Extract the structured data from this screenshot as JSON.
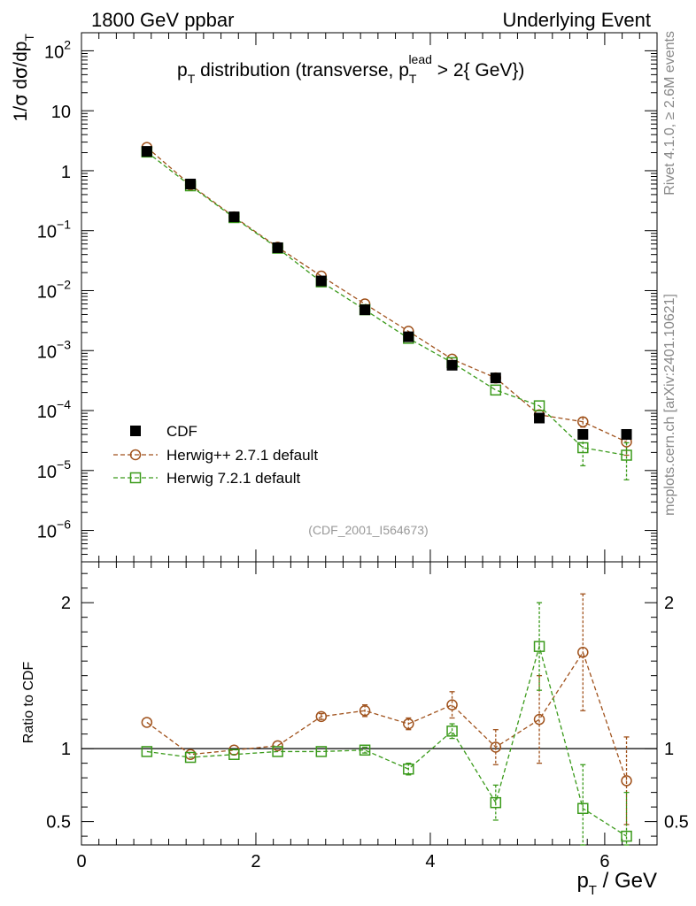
{
  "header": {
    "left": "1800 GeV ppbar",
    "right": "Underlying Event"
  },
  "side_text": {
    "rivet": "Rivet 4.1.0, ≥ 2.6M events",
    "mcplots": "mcplots.cern.ch [arXiv:2401.10621]"
  },
  "chart_data": [
    {
      "type": "scatter",
      "panel": "main",
      "title_parts": {
        "p": "p",
        "p_sub": "T",
        "text": " distribution (transverse, ",
        "p2": "p",
        "p2_sub": "T",
        "p2_sup": "lead",
        "tail": " > 2{ GeV})"
      },
      "ylabel_parts": {
        "a": "1/",
        "sigma": "σ",
        "b": "  d",
        "c": "σ",
        "d": "/dp",
        "sub": "T"
      },
      "yscale": "log",
      "ylim": [
        3e-07,
        200
      ],
      "xlim": [
        0,
        6.6
      ],
      "y_tick_labels": [
        {
          "base": "10",
          "exp": "2",
          "value": 100
        },
        {
          "base": "10",
          "exp": "",
          "value": 10
        },
        {
          "base": "1",
          "exp": "",
          "value": 1
        },
        {
          "base": "10",
          "exp": "−1",
          "value": 0.1
        },
        {
          "base": "10",
          "exp": "−2",
          "value": 0.01
        },
        {
          "base": "10",
          "exp": "−3",
          "value": 0.001
        },
        {
          "base": "10",
          "exp": "−4",
          "value": 0.0001
        },
        {
          "base": "10",
          "exp": "−5",
          "value": 1e-05
        },
        {
          "base": "10",
          "exp": "−6",
          "value": 1e-06
        }
      ],
      "x": [
        0.75,
        1.25,
        1.75,
        2.25,
        2.75,
        3.25,
        3.75,
        4.25,
        4.75,
        5.25,
        5.75,
        6.25
      ],
      "series": [
        {
          "name": "CDF",
          "color": "#000000",
          "marker": "filled-square",
          "values": [
            2.1,
            0.6,
            0.17,
            0.052,
            0.0145,
            0.0048,
            0.0017,
            0.00057,
            0.00035,
            7.5e-05,
            4e-05,
            4e-05
          ],
          "err_low": [
            0,
            0,
            0,
            0,
            0,
            0,
            0,
            0,
            0,
            0,
            0,
            0
          ],
          "err_high": [
            0,
            0,
            0,
            0,
            0,
            0,
            0,
            0,
            0,
            0,
            0,
            0
          ]
        },
        {
          "name": "Herwig++ 2.7.1 default",
          "color": "#a0521c",
          "marker": "open-circle",
          "values": [
            2.45,
            0.58,
            0.17,
            0.053,
            0.0175,
            0.006,
            0.0021,
            0.00072,
            0.00035,
            8.5e-05,
            6.5e-05,
            3e-05
          ],
          "err_low": [
            0,
            0,
            0,
            0,
            0,
            0,
            0,
            0,
            0,
            0,
            1.2e-05,
            1.2e-05
          ],
          "err_high": [
            0,
            0,
            0,
            0,
            0,
            0,
            0,
            0,
            0,
            0,
            1.2e-05,
            1.2e-05
          ]
        },
        {
          "name": "Herwig 7.2.1 default",
          "color": "#3a9a1a",
          "marker": "open-square",
          "values": [
            2.05,
            0.56,
            0.165,
            0.051,
            0.014,
            0.0048,
            0.0016,
            0.00063,
            0.00022,
            0.00012,
            2.4e-05,
            1.8e-05
          ],
          "err_low": [
            0,
            0,
            0,
            0,
            0,
            0,
            0,
            0,
            0,
            0,
            1.2e-05,
            1.1e-05
          ],
          "err_high": [
            0,
            0,
            0,
            0,
            0,
            0,
            0,
            0,
            0,
            0,
            1.2e-05,
            1.1e-05
          ]
        }
      ],
      "legend_position": "lower-left",
      "annotation": "(CDF_2001_I564673)"
    },
    {
      "type": "scatter",
      "panel": "ratio",
      "ylabel": "Ratio to CDF",
      "ylim": [
        0.34,
        2.28
      ],
      "xlim": [
        0,
        6.6
      ],
      "xlabel_parts": {
        "p": "p",
        "sub": "T",
        "rest": " / GeV"
      },
      "x_tick_labels": [
        {
          "label": "0",
          "value": 0
        },
        {
          "label": "2",
          "value": 2
        },
        {
          "label": "4",
          "value": 4
        },
        {
          "label": "6",
          "value": 6
        }
      ],
      "y_tick_labels": [
        {
          "label": "2",
          "value": 2
        },
        {
          "label": "1",
          "value": 1
        },
        {
          "label": "0.5",
          "value": 0.5
        }
      ],
      "reference_line": 1,
      "x": [
        0.75,
        1.25,
        1.75,
        2.25,
        2.75,
        3.25,
        3.75,
        4.25,
        4.75,
        5.25,
        5.75,
        6.25
      ],
      "series": [
        {
          "name": "Herwig++ 2.7.1 default",
          "color": "#a0521c",
          "marker": "open-circle",
          "values": [
            1.18,
            0.96,
            0.99,
            1.02,
            1.22,
            1.26,
            1.17,
            1.3,
            1.01,
            1.2,
            1.66,
            0.78
          ],
          "err": [
            0.01,
            0.01,
            0.01,
            0.01,
            0.02,
            0.04,
            0.04,
            0.09,
            0.12,
            0.3,
            0.4,
            0.3
          ]
        },
        {
          "name": "Herwig 7.2.1 default",
          "color": "#3a9a1a",
          "marker": "open-square",
          "values": [
            0.98,
            0.94,
            0.96,
            0.98,
            0.98,
            0.99,
            0.86,
            1.12,
            0.63,
            1.7,
            0.59,
            0.4
          ],
          "err": [
            0.01,
            0.01,
            0.01,
            0.01,
            0.01,
            0.02,
            0.04,
            0.05,
            0.12,
            0.3,
            0.3,
            0.3
          ]
        }
      ]
    }
  ]
}
